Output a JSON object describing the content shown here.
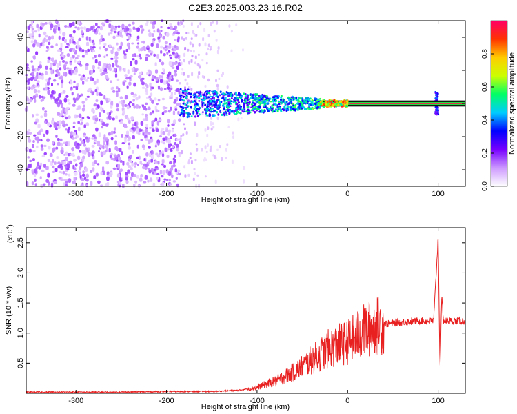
{
  "figure": {
    "title": "C2E3.2025.003.23.16.R02"
  },
  "chart_data": [
    {
      "type": "heatmap",
      "title": "C2E3.2025.003.23.16.R02",
      "xlabel": "Height of straight line (km)",
      "ylabel": "Frequency (Hz)",
      "xlim": [
        -355,
        130
      ],
      "ylim": [
        -50,
        50
      ],
      "x_ticks": [
        -300,
        -200,
        -100,
        0,
        100
      ],
      "y_ticks": [
        -40,
        -20,
        0,
        20,
        40
      ],
      "colorbar": {
        "label": "Normalized spectral amplitude",
        "range": [
          0,
          1
        ],
        "ticks": [
          "0.0",
          "0.2",
          "0.4",
          "0.6",
          "0.8"
        ],
        "colors": [
          "#ffffff",
          "#cc99ff",
          "#7700ff",
          "#0000ff",
          "#00ccff",
          "#00ff66",
          "#ccff00",
          "#ffcc00",
          "#ff3300",
          "#ff0066"
        ]
      },
      "regions": [
        {
          "x": [
            -355,
            -185
          ],
          "f_halfwidth": 50,
          "amplitude": 0.1,
          "description": "broadband noise"
        },
        {
          "x": [
            -185,
            -30
          ],
          "f_halfwidth": 8,
          "amplitude": 0.35
        },
        {
          "x": [
            -30,
            130
          ],
          "f_halfwidth": 1.5,
          "amplitude": 0.95
        },
        {
          "x": [
            97,
            100
          ],
          "f_halfwidth": 6,
          "amplitude": 0.3
        }
      ]
    },
    {
      "type": "line",
      "xlabel": "Height of straight line (km)",
      "ylabel": "SNR (10 * v/v)",
      "y_multiplier": "(x10",
      "y_multiplier_exp": "4",
      "xlim": [
        -355,
        130
      ],
      "ylim": [
        0,
        2.75
      ],
      "x_ticks": [
        -300,
        -200,
        -100,
        0,
        100
      ],
      "y_ticks": [
        "0.5",
        "1.0",
        "1.5",
        "2.0",
        "2.5"
      ],
      "color": "#ff0000",
      "series": [
        {
          "x": [
            -355,
            -300,
            -250,
            -200,
            -150,
            -120,
            -100,
            -80,
            -60,
            -40,
            -20,
            0,
            20,
            40,
            60,
            80,
            95,
            100,
            102,
            104,
            106,
            110,
            130
          ],
          "y": [
            0.02,
            0.02,
            0.02,
            0.03,
            0.03,
            0.05,
            0.1,
            0.2,
            0.35,
            0.55,
            0.75,
            0.85,
            1.05,
            1.15,
            1.18,
            1.2,
            1.2,
            2.6,
            0.4,
            1.6,
            1.2,
            1.2,
            1.2
          ]
        }
      ]
    }
  ]
}
